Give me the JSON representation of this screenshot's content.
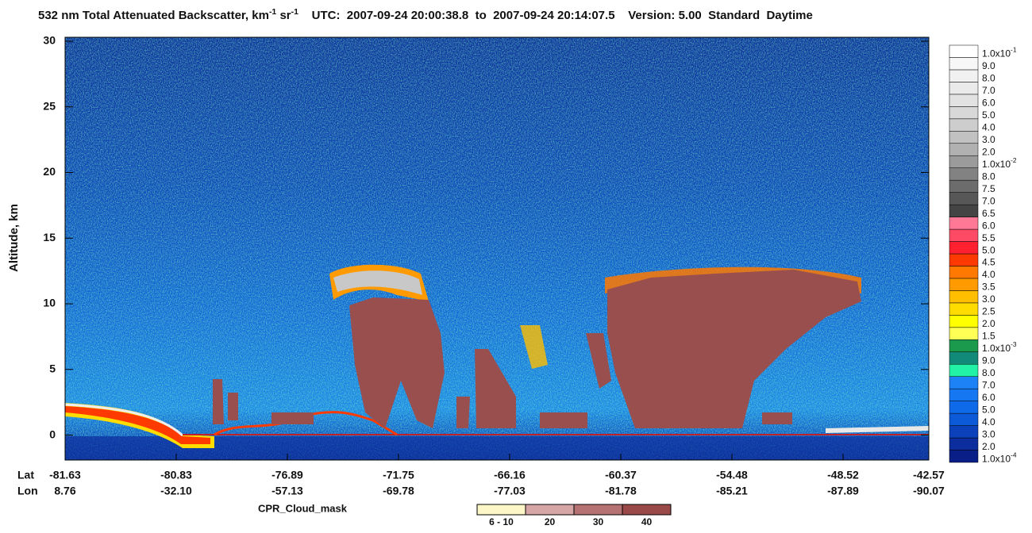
{
  "chart_data": {
    "type": "curtain",
    "title": [
      {
        "text": "532 nm Total Attenuated Backscatter, km"
      },
      {
        "text": "-1",
        "sup": true
      },
      {
        "text": " sr"
      },
      {
        "text": "-1",
        "sup": true
      },
      {
        "text": "    UTC:  2007-09-24 20:00:38.8  to  2007-09-24 20:14:07.5    Version: 5.00  Standard  Daytime"
      }
    ],
    "y_label": "Altitude, km",
    "ylim": [
      -1.9,
      30.3
    ],
    "yticks": [
      0,
      5,
      10,
      15,
      20,
      25,
      30
    ],
    "x_row_labels": [
      "Lat",
      "Lon"
    ],
    "x_labels": [
      {
        "lat": "-81.63",
        "lon": "8.76"
      },
      {
        "lat": "-80.83",
        "lon": "-32.10"
      },
      {
        "lat": "-76.89",
        "lon": "-57.13"
      },
      {
        "lat": "-71.75",
        "lon": "-69.78"
      },
      {
        "lat": "-66.16",
        "lon": "-77.03"
      },
      {
        "lat": "-60.37",
        "lon": "-81.78"
      },
      {
        "lat": "-54.48",
        "lon": "-85.21"
      },
      {
        "lat": "-48.52",
        "lon": "-87.89"
      },
      {
        "lat": "-42.57",
        "lon": "-90.07"
      }
    ],
    "colorbar": [
      {
        "label": [
          {
            "text": "1.0x10"
          },
          {
            "text": "-4",
            "sup": true
          }
        ],
        "color": "#0a1e88"
      },
      {
        "label": [
          {
            "text": "2.0"
          }
        ],
        "color": "#0b2d9e"
      },
      {
        "label": [
          {
            "text": "3.0"
          }
        ],
        "color": "#0b42bc"
      },
      {
        "label": [
          {
            "text": "4.0"
          }
        ],
        "color": "#0d5ad8"
      },
      {
        "label": [
          {
            "text": "5.0"
          }
        ],
        "color": "#0f6aea"
      },
      {
        "label": [
          {
            "text": "6.0"
          }
        ],
        "color": "#1577f2"
      },
      {
        "label": [
          {
            "text": "7.0"
          }
        ],
        "color": "#1c82f6"
      },
      {
        "label": [
          {
            "text": "8.0"
          }
        ],
        "color": "#22f2a6"
      },
      {
        "label": [
          {
            "text": "9.0"
          }
        ],
        "color": "#128a7a"
      },
      {
        "label": [
          {
            "text": "1.0x10"
          },
          {
            "text": "-3",
            "sup": true
          }
        ],
        "color": "#1b9a4e"
      },
      {
        "label": [
          {
            "text": "1.5"
          }
        ],
        "color": "#ffff55"
      },
      {
        "label": [
          {
            "text": "2.0"
          }
        ],
        "color": "#ffff00"
      },
      {
        "label": [
          {
            "text": "2.5"
          }
        ],
        "color": "#ffdc00"
      },
      {
        "label": [
          {
            "text": "3.0"
          }
        ],
        "color": "#ffbe00"
      },
      {
        "label": [
          {
            "text": "3.5"
          }
        ],
        "color": "#ff9a00"
      },
      {
        "label": [
          {
            "text": "4.0"
          }
        ],
        "color": "#ff7800"
      },
      {
        "label": [
          {
            "text": "4.5"
          }
        ],
        "color": "#ff3a00"
      },
      {
        "label": [
          {
            "text": "5.0"
          }
        ],
        "color": "#ff2030"
      },
      {
        "label": [
          {
            "text": "5.5"
          }
        ],
        "color": "#ff4a66"
      },
      {
        "label": [
          {
            "text": "6.0"
          }
        ],
        "color": "#ff7896"
      },
      {
        "label": [
          {
            "text": "6.5"
          }
        ],
        "color": "#444444"
      },
      {
        "label": [
          {
            "text": "7.0"
          }
        ],
        "color": "#575757"
      },
      {
        "label": [
          {
            "text": "7.5"
          }
        ],
        "color": "#6c6c6c"
      },
      {
        "label": [
          {
            "text": "8.0"
          }
        ],
        "color": "#828282"
      },
      {
        "label": [
          {
            "text": "1.0x10"
          },
          {
            "text": "-2",
            "sup": true
          }
        ],
        "color": "#9b9b9b"
      },
      {
        "label": [
          {
            "text": "2.0"
          }
        ],
        "color": "#b1b1b1"
      },
      {
        "label": [
          {
            "text": "3.0"
          }
        ],
        "color": "#c1c1c1"
      },
      {
        "label": [
          {
            "text": "4.0"
          }
        ],
        "color": "#cdcdcd"
      },
      {
        "label": [
          {
            "text": "5.0"
          }
        ],
        "color": "#d8d8d8"
      },
      {
        "label": [
          {
            "text": "6.0"
          }
        ],
        "color": "#e2e2e2"
      },
      {
        "label": [
          {
            "text": "7.0"
          }
        ],
        "color": "#eaeaea"
      },
      {
        "label": [
          {
            "text": "8.0"
          }
        ],
        "color": "#f1f1f1"
      },
      {
        "label": [
          {
            "text": "9.0"
          }
        ],
        "color": "#f7f7f7"
      },
      {
        "label": [
          {
            "text": "1.0x10"
          },
          {
            "text": "-1",
            "sup": true
          }
        ],
        "color": "#ffffff"
      }
    ],
    "mask_legend": {
      "title": "CPR_Cloud_mask",
      "items": [
        {
          "label": "6 - 10",
          "color": "#fdf6c6"
        },
        {
          "label": "20",
          "color": "#d6a6a6"
        },
        {
          "label": "30",
          "color": "#b67272"
        },
        {
          "label": "40",
          "color": "#9a4848"
        }
      ]
    }
  }
}
